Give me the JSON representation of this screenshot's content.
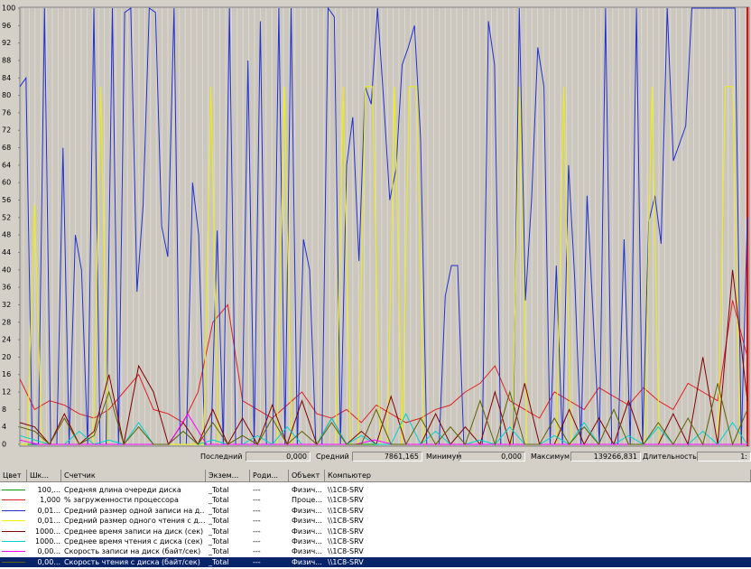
{
  "chart_data": {
    "type": "line",
    "ylim": [
      0,
      100
    ],
    "yticks": [
      0,
      4,
      8,
      12,
      16,
      20,
      24,
      28,
      32,
      36,
      40,
      44,
      48,
      52,
      56,
      60,
      64,
      68,
      72,
      76,
      80,
      84,
      88,
      92,
      96,
      100
    ],
    "series": [
      {
        "color": "#00a000",
        "values": [
          0,
          0,
          0,
          0,
          0,
          0,
          0,
          0,
          0,
          0,
          0,
          0,
          0,
          0,
          0,
          0,
          0,
          0,
          0,
          0
        ]
      },
      {
        "color": "#e02020",
        "values": [
          15,
          8,
          10,
          9,
          7,
          6,
          8,
          12,
          16,
          8,
          7,
          5,
          12,
          28,
          32,
          10,
          8,
          6,
          9,
          12,
          7,
          6,
          8,
          5,
          9,
          7,
          5,
          6,
          8,
          9,
          12,
          14,
          18,
          10,
          8,
          6,
          12,
          10,
          8,
          13,
          11,
          9,
          13,
          10,
          8,
          14,
          12,
          10,
          33,
          20
        ]
      },
      {
        "color": "#2030d0",
        "values": [
          82,
          84,
          0,
          0,
          100,
          0,
          0,
          68,
          0,
          48,
          40,
          0,
          100,
          0,
          0,
          100,
          0,
          99,
          100,
          35,
          55,
          100,
          99,
          50,
          43,
          100,
          0,
          0,
          60,
          48,
          0,
          0,
          49,
          0,
          100,
          0,
          0,
          88,
          0,
          97,
          0,
          0,
          100,
          0,
          100,
          0,
          47,
          40,
          0,
          0,
          100,
          98,
          0,
          64,
          75,
          42,
          82,
          78,
          100,
          79,
          56,
          63,
          87,
          91,
          96,
          70,
          0,
          0,
          0,
          34,
          41,
          41,
          0,
          0,
          0,
          0,
          97,
          87,
          0,
          0,
          0,
          100,
          33,
          56,
          91,
          82,
          0,
          41,
          0,
          64,
          38,
          0,
          57,
          29,
          0,
          100,
          0,
          0,
          47,
          0,
          100,
          0,
          51,
          57,
          46,
          100,
          65,
          69,
          73,
          100,
          100,
          100,
          100,
          100,
          100,
          100,
          100,
          0,
          52
        ]
      },
      {
        "color": "#f0f000",
        "values": [
          0,
          0,
          55,
          0,
          0,
          0,
          0,
          0,
          0,
          0,
          0,
          82,
          0,
          0,
          0,
          0,
          0,
          0,
          0,
          0,
          0,
          0,
          0,
          0,
          0,
          0,
          82,
          0,
          0,
          0,
          0,
          0,
          0,
          0,
          0,
          0,
          82,
          0,
          0,
          0,
          0,
          0,
          0,
          0,
          82,
          0,
          0,
          82,
          82,
          0,
          0,
          82,
          0,
          82,
          82,
          0,
          0,
          0,
          0,
          0,
          0,
          0,
          0,
          0,
          0,
          0,
          0,
          0,
          82,
          0,
          0,
          0,
          0,
          0,
          82,
          0,
          0,
          0,
          0,
          0,
          0,
          0,
          0,
          0,
          0,
          0,
          82,
          0,
          0,
          0,
          0,
          0,
          0,
          0,
          0,
          0,
          82,
          82,
          0,
          0
        ]
      },
      {
        "color": "#800000",
        "values": [
          5,
          4,
          0,
          7,
          0,
          3,
          16,
          0,
          18,
          12,
          0,
          5,
          0,
          8,
          0,
          6,
          0,
          9,
          0,
          10,
          0,
          6,
          0,
          3,
          0,
          11,
          0,
          0,
          7,
          0,
          4,
          0,
          12,
          0,
          14,
          0,
          0,
          8,
          0,
          6,
          0,
          10,
          0,
          0,
          7,
          0,
          20,
          0,
          40,
          10
        ]
      },
      {
        "color": "#00d0d0",
        "values": [
          2,
          1,
          0,
          0,
          3,
          0,
          1,
          0,
          5,
          0,
          0,
          3,
          0,
          1,
          0,
          0,
          2,
          0,
          4,
          0,
          0,
          6,
          0,
          2,
          0,
          0,
          7,
          0,
          3,
          0,
          0,
          1,
          0,
          4,
          0,
          0,
          2,
          0,
          5,
          0,
          0,
          2,
          0,
          4,
          0,
          0,
          3,
          0,
          5,
          0
        ]
      },
      {
        "color": "#ff00ff",
        "values": [
          1,
          0,
          0,
          0,
          0,
          0,
          0,
          0,
          0,
          7,
          0,
          0,
          0,
          0,
          0,
          0,
          0,
          0,
          0,
          1,
          0,
          0,
          0,
          0,
          0,
          0,
          0,
          0,
          0,
          0,
          0,
          0,
          0,
          0,
          0,
          0,
          0,
          0,
          0,
          0
        ]
      },
      {
        "color": "#606000",
        "values": [
          4,
          3,
          0,
          6,
          0,
          2,
          12,
          0,
          4,
          0,
          0,
          3,
          0,
          5,
          0,
          2,
          0,
          6,
          0,
          3,
          0,
          5,
          0,
          0,
          8,
          0,
          0,
          6,
          0,
          4,
          0,
          10,
          0,
          12,
          0,
          0,
          6,
          0,
          4,
          0,
          8,
          0,
          0,
          5,
          0,
          6,
          0,
          14,
          0,
          8
        ]
      }
    ]
  },
  "stats": [
    {
      "label": "Последний",
      "value": "0,000"
    },
    {
      "label": "Средний",
      "value": "7861,165"
    },
    {
      "label": "Минимум",
      "value": "0,000"
    },
    {
      "label": "Максимум",
      "value": "139266,831"
    },
    {
      "label": "Длительность",
      "value": "1:"
    }
  ],
  "table": {
    "columns": [
      "Цвет",
      "Шк...",
      "Счетчик",
      "Экзем...",
      "Роди...",
      "Объект",
      "Компьютер"
    ],
    "rows": [
      [
        "100,...",
        "Средняя длина очереди диска",
        "_Total",
        "---",
        "Физич...",
        "\\\\1C8-SRV"
      ],
      [
        "1,000",
        "% загруженности процессора",
        "_Total",
        "---",
        "Проце...",
        "\\\\1C8-SRV"
      ],
      [
        "0,01...",
        "Средний размер одной записи на д...",
        "_Total",
        "---",
        "Физич...",
        "\\\\1C8-SRV"
      ],
      [
        "0,01...",
        "Средний размер одного чтения с д...",
        "_Total",
        "---",
        "Физич...",
        "\\\\1C8-SRV"
      ],
      [
        "1000...",
        "Среднее время записи на диск (сек)",
        "_Total",
        "---",
        "Физич...",
        "\\\\1C8-SRV"
      ],
      [
        "1000...",
        "Среднее время чтения с диска (сек)",
        "_Total",
        "---",
        "Физич...",
        "\\\\1C8-SRV"
      ],
      [
        "0,00...",
        "Скорость записи на диск (байт/сек)",
        "_Total",
        "---",
        "Физич...",
        "\\\\1C8-SRV"
      ],
      [
        "0,00...",
        "Скорость чтения с диска (байт/сек)",
        "_Total",
        "---",
        "Физич...",
        "\\\\1C8-SRV"
      ]
    ]
  }
}
